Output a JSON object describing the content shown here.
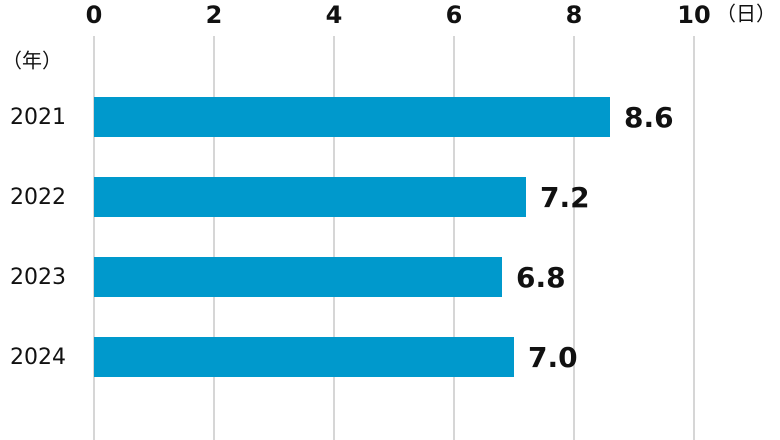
{
  "chart_data": {
    "type": "bar",
    "orientation": "horizontal",
    "x_label": "（日）",
    "y_label": "（年）",
    "categories": [
      "2021",
      "2022",
      "2023",
      "2024"
    ],
    "values": [
      8.6,
      7.2,
      6.8,
      7.0
    ],
    "value_labels": [
      "8.6",
      "7.2",
      "6.8",
      "7.0"
    ],
    "color": "#0099cc",
    "xlim": [
      0,
      10
    ],
    "xticks": [
      0,
      2,
      4,
      6,
      8,
      10
    ],
    "grid": true
  }
}
